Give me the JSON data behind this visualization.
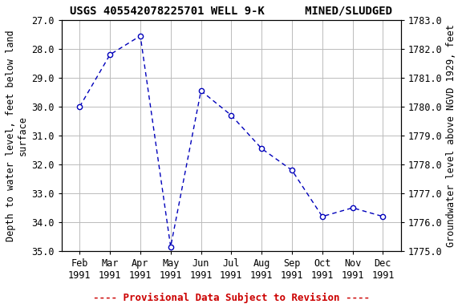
{
  "title": "USGS 405542078225701 WELL 9-K      MINED/SLUDGED",
  "xlabel_months": [
    "Feb\n1991",
    "Mar\n1991",
    "Apr\n1991",
    "May\n1991",
    "Jun\n1991",
    "Jul\n1991",
    "Aug\n1991",
    "Sep\n1991",
    "Oct\n1991",
    "Nov\n1991",
    "Dec\n1991"
  ],
  "x_numeric": [
    2,
    3,
    4,
    5,
    6,
    7,
    8,
    9,
    10,
    11,
    12
  ],
  "y_depth": [
    30.0,
    28.2,
    27.55,
    34.85,
    29.45,
    30.3,
    31.45,
    32.2,
    33.8,
    33.5,
    33.8
  ],
  "ylabel_left": "Depth to water level, feet below land\nsurface",
  "ylabel_right": "Groundwater level above NGVD 1929, feet",
  "ylim_left": [
    27.0,
    35.0
  ],
  "ylim_right": [
    1775.0,
    1783.0
  ],
  "yticks_left": [
    27.0,
    28.0,
    29.0,
    30.0,
    31.0,
    32.0,
    33.0,
    34.0,
    35.0
  ],
  "yticks_right": [
    1775.0,
    1776.0,
    1777.0,
    1778.0,
    1779.0,
    1780.0,
    1781.0,
    1782.0,
    1783.0
  ],
  "line_color": "#0000BB",
  "marker_face": "#ffffff",
  "provisional_text": "---- Provisional Data Subject to Revision ----",
  "provisional_color": "#CC0000",
  "bg_color": "#ffffff",
  "grid_color": "#bbbbbb",
  "title_fontsize": 10,
  "axis_label_fontsize": 8.5,
  "tick_fontsize": 8.5
}
